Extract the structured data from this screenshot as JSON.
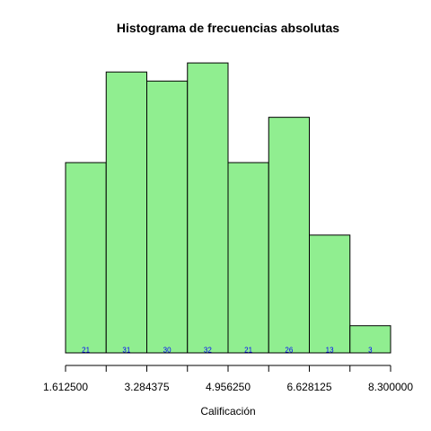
{
  "chart_data": {
    "type": "bar",
    "title": "Histograma de frecuencias absolutas",
    "xlabel": "Calificación",
    "ylabel": "",
    "bin_edges": [
      1.6125,
      2.448438,
      3.284375,
      4.120313,
      4.95625,
      5.792188,
      6.628125,
      7.464063,
      8.3
    ],
    "values": [
      21,
      31,
      30,
      32,
      21,
      26,
      13,
      3
    ],
    "value_labels": [
      "21",
      "31",
      "30",
      "32",
      "21",
      "26",
      "13",
      "3"
    ],
    "tick_labels": [
      "1.612500",
      "3.284375",
      "4.956250",
      "6.628125",
      "8.300000"
    ],
    "ylim": [
      0,
      33
    ],
    "bar_fill": "#90ee90",
    "bar_stroke": "#000000",
    "count_label_color": "#0000ff",
    "grid": false,
    "legend": "none"
  }
}
